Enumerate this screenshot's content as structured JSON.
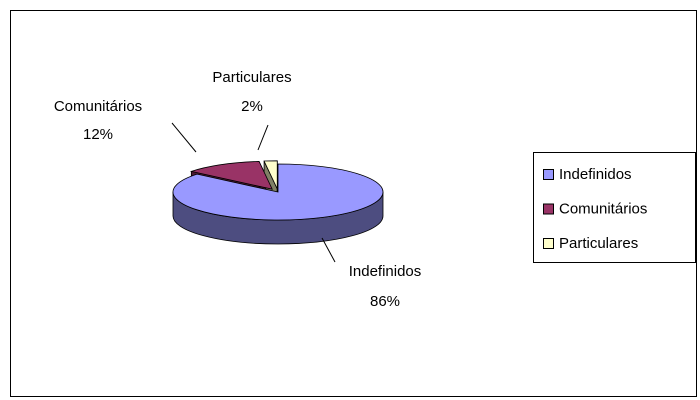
{
  "chart_data": {
    "type": "pie",
    "categories": [
      "Indefinidos",
      "Comunitários",
      "Particulares"
    ],
    "values": [
      86,
      12,
      2
    ],
    "value_labels": [
      "86%",
      "12%",
      "2%"
    ],
    "colors": [
      "#9999ff",
      "#993366",
      "#ffffcc"
    ],
    "legend": "right"
  }
}
